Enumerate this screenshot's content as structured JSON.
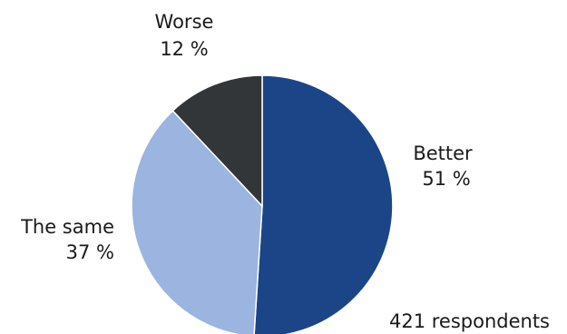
{
  "chart_data": {
    "type": "pie",
    "slices": [
      {
        "label": "Better",
        "value": 51,
        "value_text": "51 %",
        "color": "#1c4587"
      },
      {
        "label": "The same",
        "value": 37,
        "value_text": "37 %",
        "color": "#9bb4e0"
      },
      {
        "label": "Worse",
        "value": 12,
        "value_text": "12 %",
        "color": "#333638"
      }
    ],
    "note": "421 respondents",
    "start": "top",
    "direction": "clockwise"
  }
}
